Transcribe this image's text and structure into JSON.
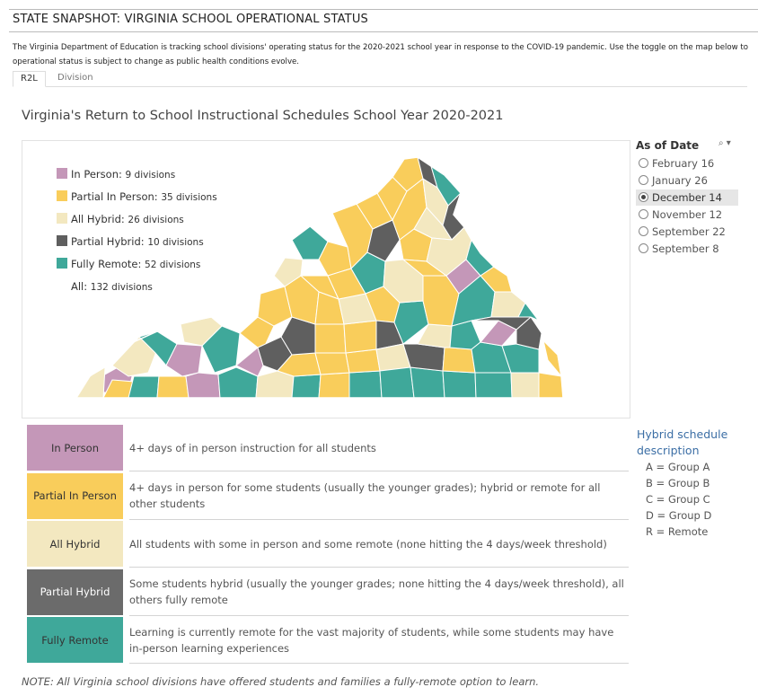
{
  "header": {
    "title": "STATE SNAPSHOT: VIRGINIA SCHOOL OPERATIONAL STATUS",
    "intro_line1": "The Virginia Department of Education is tracking school divisions' operating status  for the 2020-2021 school year in response to the COVID-19 pandemic. Use the toggle on the map below to",
    "intro_line2": "operational status is subject to change as public health conditions evolve."
  },
  "tabs": [
    {
      "label": "R2L",
      "active": true
    },
    {
      "label": "Division",
      "active": false
    }
  ],
  "map": {
    "title": "Virginia's Return to School Instructional Schedules School Year 2020-2021",
    "legend": [
      {
        "label": "In Person: ",
        "count": "9 divisions",
        "color": "#c497b8"
      },
      {
        "label": "Partial In Person: ",
        "count": "35 divisions",
        "color": "#f9cd5b"
      },
      {
        "label": "All Hybrid: ",
        "count": "26 divisions",
        "color": "#f3e8c0"
      },
      {
        "label": "Partial Hybrid: ",
        "count": "10 divisions",
        "color": "#5f5f5f"
      },
      {
        "label": "Fully Remote: ",
        "count": "52 divisions",
        "color": "#3fa89a"
      }
    ],
    "all_label": "All: ",
    "all_count": "132 divisions"
  },
  "date_filter": {
    "header": "As of Date",
    "tools_icon": "search-dropdown-icon",
    "options": [
      {
        "label": "February 16",
        "selected": false
      },
      {
        "label": "January 26",
        "selected": false
      },
      {
        "label": "December 14",
        "selected": true
      },
      {
        "label": "November 12",
        "selected": false
      },
      {
        "label": "September 22",
        "selected": false
      },
      {
        "label": "September 8",
        "selected": false
      }
    ]
  },
  "descriptions": [
    {
      "category": "In Person",
      "color": "#c497b8",
      "text": "4+ days of in person instruction for all students"
    },
    {
      "category": "Partial In Person",
      "color": "#f9cd5b",
      "text": "4+ days in person for some students (usually the younger grades); hybrid or remote for all other students"
    },
    {
      "category": "All Hybrid",
      "color": "#f3e8c0",
      "text": "All students with some in person and some remote (none hitting the 4 days/week threshold)"
    },
    {
      "category": "Partial Hybrid",
      "color": "#6b6b6b",
      "text": "Some students hybrid (usually the younger grades; none hitting the 4 days/week threshold), all others fully remote"
    },
    {
      "category": "Fully Remote",
      "color": "#3fa89a",
      "text": "Learning is currently remote for the vast majority of students, while some students may have in-person learning experiences"
    }
  ],
  "hybrid_schedule": {
    "title": "Hybrid schedule description",
    "items": [
      "A = Group A",
      "B = Group B",
      "C = Group C",
      "D = Group D",
      "R = Remote"
    ]
  },
  "note": "NOTE: All Virginia school divisions have offered students and families a fully-remote option to learn."
}
